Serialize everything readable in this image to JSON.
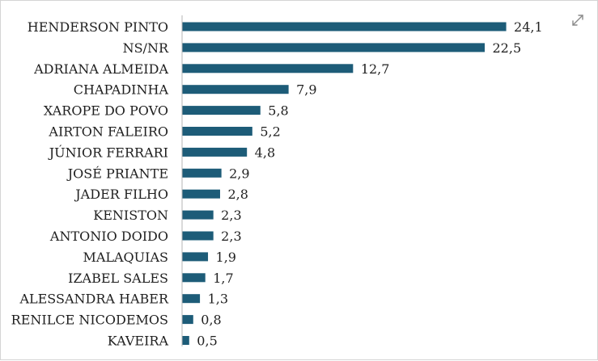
{
  "chart_data": {
    "type": "bar",
    "orientation": "horizontal",
    "title": "",
    "xlabel": "",
    "ylabel": "",
    "categories": [
      "HENDERSON PINTO",
      "NS/NR",
      "ADRIANA ALMEIDA",
      "CHAPADINHA",
      "XAROPE DO POVO",
      "AIRTON FALEIRO",
      "JÚNIOR FERRARI",
      "JOSÉ PRIANTE",
      "JADER FILHO",
      "KENISTON",
      "ANTONIO DOIDO",
      "MALAQUIAS",
      "IZABEL SALES",
      "ALESSANDRA HABER",
      "RENILCE NICODEMOS",
      "KAVEIRA"
    ],
    "values": [
      24.1,
      22.5,
      12.7,
      7.9,
      5.8,
      5.2,
      4.8,
      2.9,
      2.8,
      2.3,
      2.3,
      1.9,
      1.7,
      1.3,
      0.8,
      0.5
    ],
    "value_labels": [
      "24,1",
      "22,5",
      "12,7",
      "7,9",
      "5,8",
      "5,2",
      "4,8",
      "2,9",
      "2,8",
      "2,3",
      "2,3",
      "1,9",
      "1,7",
      "1,3",
      "0,8",
      "0,5"
    ],
    "xlim": [
      0,
      25
    ],
    "bar_color": "#1d5c78",
    "grid": false,
    "legend": "none"
  },
  "toolbar": {
    "expand_icon": "expand-icon"
  }
}
